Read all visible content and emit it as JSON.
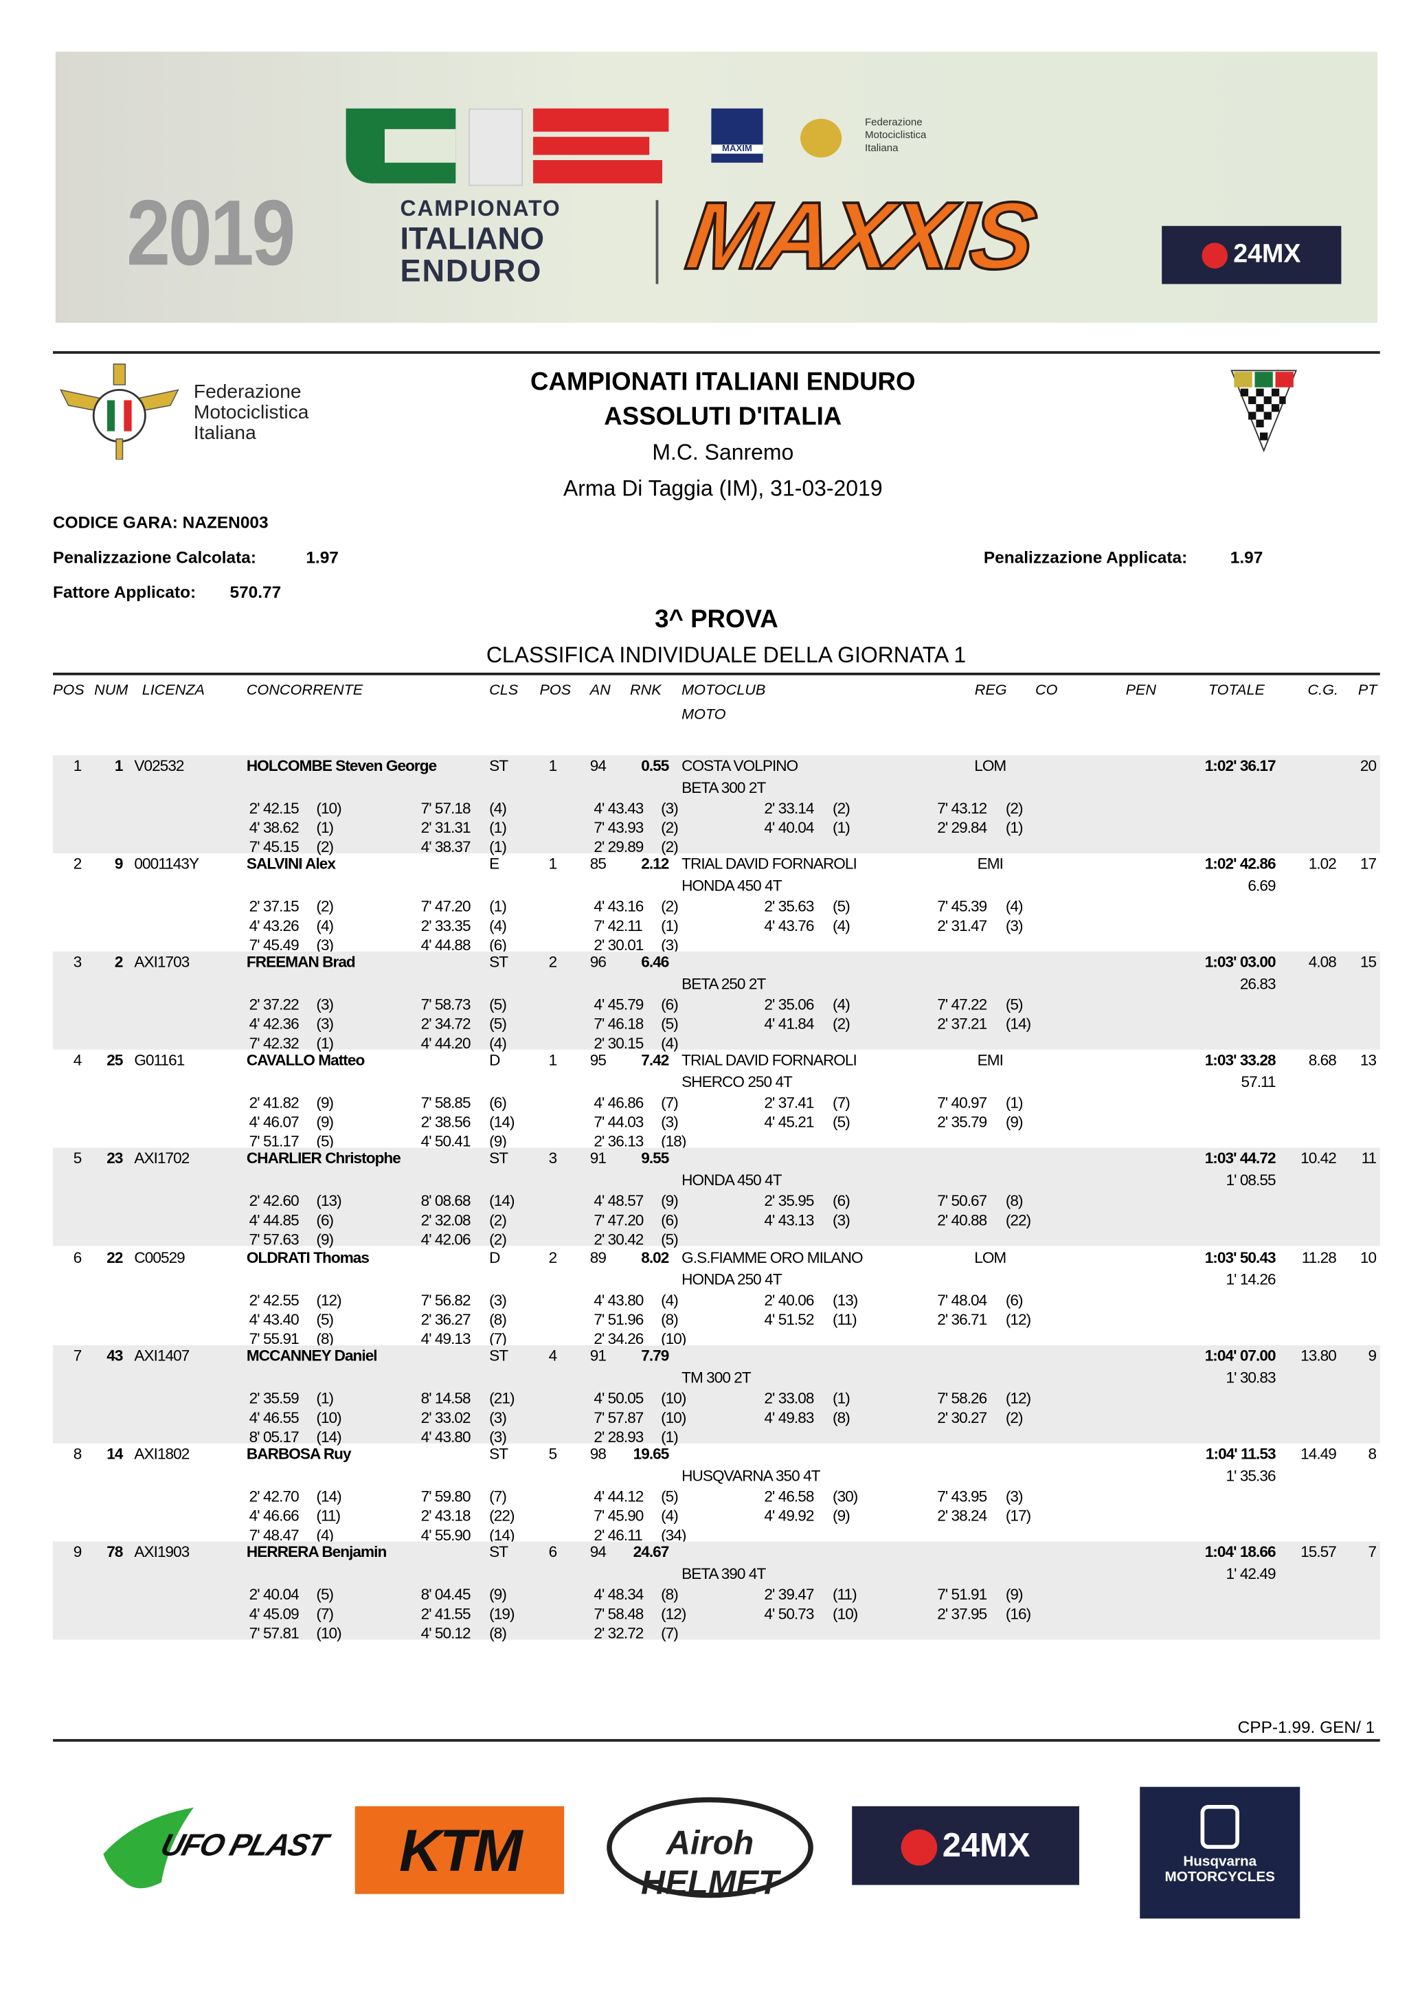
{
  "banner": {
    "year": "2019",
    "cie_logo_text": "CIE",
    "championship": [
      "CAMPIONATO",
      "ITALIANO",
      "ENDURO"
    ],
    "sponsor_main": "MAXXIS",
    "maxim_logo_text": "MAXIM",
    "fmi_small_text": [
      "Federazione",
      "Motociclistica",
      "Italiana"
    ],
    "sponsor_24mx": "24MX",
    "colors": {
      "green": "#1a7a3c",
      "red": "#e0282a",
      "orange": "#ee6f1c",
      "navy": "#1f2340"
    }
  },
  "header": {
    "fmi_logo_text": [
      "Federazione",
      "Motociclistica",
      "Italiana"
    ],
    "title1": "CAMPIONATI ITALIANI ENDURO",
    "title2": "ASSOLUTI D'ITALIA",
    "club": "M.C. Sanremo",
    "place_date": "Arma Di Taggia (IM), 31-03-2019",
    "fie_logo_text": "FIE"
  },
  "info": {
    "codice_gara": "CODICE GARA: NAZEN003",
    "pen_calc_label": "Penalizzazione Calcolata:",
    "pen_calc_value": "1.97",
    "pen_appl_label": "Penalizzazione Applicata:",
    "pen_appl_value": "1.97",
    "fattore_label": "Fattore Applicato:",
    "fattore_value": "570.77"
  },
  "section": {
    "title": "3^ PROVA",
    "subtitle": "CLASSIFICA INDIVIDUALE DELLA GIORNATA 1"
  },
  "columns": {
    "pos": "POS",
    "num": "NUM",
    "licenza": "LICENZA",
    "concorrente": "CONCORRENTE",
    "cls": "CLS",
    "cls_pos": "POS",
    "an": "AN",
    "rnk": "RNK",
    "motoclub": "MOTOCLUB",
    "moto": "MOTO",
    "reg": "REG",
    "co": "CO",
    "pen": "PEN",
    "totale": "TOTALE",
    "cg": "C.G.",
    "pt": "PT"
  },
  "rows": [
    {
      "pos": "1",
      "num": "1",
      "licenza": "V02532",
      "name": "HOLCOMBE Steven George",
      "cls": "ST",
      "cls_pos": "1",
      "an": "94",
      "rnk": "0.55",
      "motoclub": "COSTA VOLPINO",
      "moto": "BETA 300 2T",
      "reg": "LOM",
      "totale": "1:02' 36.17",
      "gap": "",
      "cg": "",
      "pt": "20",
      "times": [
        [
          [
            "2' 42.15",
            "(10)"
          ],
          [
            "7' 57.18",
            "(4)"
          ],
          [
            "4' 43.43",
            "(3)"
          ],
          [
            "2' 33.14",
            "(2)"
          ],
          [
            "7' 43.12",
            "(2)"
          ]
        ],
        [
          [
            "4' 38.62",
            "(1)"
          ],
          [
            "2' 31.31",
            "(1)"
          ],
          [
            "7' 43.93",
            "(2)"
          ],
          [
            "4' 40.04",
            "(1)"
          ],
          [
            "2' 29.84",
            "(1)"
          ]
        ],
        [
          [
            "7' 45.15",
            "(2)"
          ],
          [
            "4' 38.37",
            "(1)"
          ],
          [
            "2' 29.89",
            "(2)"
          ]
        ]
      ]
    },
    {
      "pos": "2",
      "num": "9",
      "licenza": "0001143Y",
      "name": "SALVINI Alex",
      "cls": "E",
      "cls_pos": "1",
      "an": "85",
      "rnk": "2.12",
      "motoclub": "TRIAL DAVID FORNAROLI",
      "moto": "HONDA 450 4T",
      "reg": "EMI",
      "totale": "1:02' 42.86",
      "gap": "6.69",
      "cg": "1.02",
      "pt": "17",
      "times": [
        [
          [
            "2' 37.15",
            "(2)"
          ],
          [
            "7' 47.20",
            "(1)"
          ],
          [
            "4' 43.16",
            "(2)"
          ],
          [
            "2' 35.63",
            "(5)"
          ],
          [
            "7' 45.39",
            "(4)"
          ]
        ],
        [
          [
            "4' 43.26",
            "(4)"
          ],
          [
            "2' 33.35",
            "(4)"
          ],
          [
            "7' 42.11",
            "(1)"
          ],
          [
            "4' 43.76",
            "(4)"
          ],
          [
            "2' 31.47",
            "(3)"
          ]
        ],
        [
          [
            "7' 45.49",
            "(3)"
          ],
          [
            "4' 44.88",
            "(6)"
          ],
          [
            "2' 30.01",
            "(3)"
          ]
        ]
      ]
    },
    {
      "pos": "3",
      "num": "2",
      "licenza": "AXI1703",
      "name": "FREEMAN Brad",
      "cls": "ST",
      "cls_pos": "2",
      "an": "96",
      "rnk": "6.46",
      "motoclub": "",
      "moto": "BETA 250 2T",
      "reg": "",
      "totale": "1:03' 03.00",
      "gap": "26.83",
      "cg": "4.08",
      "pt": "15",
      "times": [
        [
          [
            "2' 37.22",
            "(3)"
          ],
          [
            "7' 58.73",
            "(5)"
          ],
          [
            "4' 45.79",
            "(6)"
          ],
          [
            "2' 35.06",
            "(4)"
          ],
          [
            "7' 47.22",
            "(5)"
          ]
        ],
        [
          [
            "4' 42.36",
            "(3)"
          ],
          [
            "2' 34.72",
            "(5)"
          ],
          [
            "7' 46.18",
            "(5)"
          ],
          [
            "4' 41.84",
            "(2)"
          ],
          [
            "2' 37.21",
            "(14)"
          ]
        ],
        [
          [
            "7' 42.32",
            "(1)"
          ],
          [
            "4' 44.20",
            "(4)"
          ],
          [
            "2' 30.15",
            "(4)"
          ]
        ]
      ]
    },
    {
      "pos": "4",
      "num": "25",
      "licenza": "G01161",
      "name": "CAVALLO Matteo",
      "cls": "D",
      "cls_pos": "1",
      "an": "95",
      "rnk": "7.42",
      "motoclub": "TRIAL DAVID FORNAROLI",
      "moto": "SHERCO 250 4T",
      "reg": "EMI",
      "totale": "1:03' 33.28",
      "gap": "57.11",
      "cg": "8.68",
      "pt": "13",
      "times": [
        [
          [
            "2' 41.82",
            "(9)"
          ],
          [
            "7' 58.85",
            "(6)"
          ],
          [
            "4' 46.86",
            "(7)"
          ],
          [
            "2' 37.41",
            "(7)"
          ],
          [
            "7' 40.97",
            "(1)"
          ]
        ],
        [
          [
            "4' 46.07",
            "(9)"
          ],
          [
            "2' 38.56",
            "(14)"
          ],
          [
            "7' 44.03",
            "(3)"
          ],
          [
            "4' 45.21",
            "(5)"
          ],
          [
            "2' 35.79",
            "(9)"
          ]
        ],
        [
          [
            "7' 51.17",
            "(5)"
          ],
          [
            "4' 50.41",
            "(9)"
          ],
          [
            "2' 36.13",
            "(18)"
          ]
        ]
      ]
    },
    {
      "pos": "5",
      "num": "23",
      "licenza": "AXI1702",
      "name": "CHARLIER Christophe",
      "cls": "ST",
      "cls_pos": "3",
      "an": "91",
      "rnk": "9.55",
      "motoclub": "",
      "moto": "HONDA 450 4T",
      "reg": "",
      "totale": "1:03' 44.72",
      "gap": "1' 08.55",
      "cg": "10.42",
      "pt": "11",
      "times": [
        [
          [
            "2' 42.60",
            "(13)"
          ],
          [
            "8' 08.68",
            "(14)"
          ],
          [
            "4' 48.57",
            "(9)"
          ],
          [
            "2' 35.95",
            "(6)"
          ],
          [
            "7' 50.67",
            "(8)"
          ]
        ],
        [
          [
            "4' 44.85",
            "(6)"
          ],
          [
            "2' 32.08",
            "(2)"
          ],
          [
            "7' 47.20",
            "(6)"
          ],
          [
            "4' 43.13",
            "(3)"
          ],
          [
            "2' 40.88",
            "(22)"
          ]
        ],
        [
          [
            "7' 57.63",
            "(9)"
          ],
          [
            "4' 42.06",
            "(2)"
          ],
          [
            "2' 30.42",
            "(5)"
          ]
        ]
      ]
    },
    {
      "pos": "6",
      "num": "22",
      "licenza": "C00529",
      "name": "OLDRATI Thomas",
      "cls": "D",
      "cls_pos": "2",
      "an": "89",
      "rnk": "8.02",
      "motoclub": "G.S.FIAMME ORO MILANO",
      "moto": "HONDA 250 4T",
      "reg": "LOM",
      "totale": "1:03' 50.43",
      "gap": "1' 14.26",
      "cg": "11.28",
      "pt": "10",
      "times": [
        [
          [
            "2' 42.55",
            "(12)"
          ],
          [
            "7' 56.82",
            "(3)"
          ],
          [
            "4' 43.80",
            "(4)"
          ],
          [
            "2' 40.06",
            "(13)"
          ],
          [
            "7' 48.04",
            "(6)"
          ]
        ],
        [
          [
            "4' 43.40",
            "(5)"
          ],
          [
            "2' 36.27",
            "(8)"
          ],
          [
            "7' 51.96",
            "(8)"
          ],
          [
            "4' 51.52",
            "(11)"
          ],
          [
            "2' 36.71",
            "(12)"
          ]
        ],
        [
          [
            "7' 55.91",
            "(8)"
          ],
          [
            "4' 49.13",
            "(7)"
          ],
          [
            "2' 34.26",
            "(10)"
          ]
        ]
      ]
    },
    {
      "pos": "7",
      "num": "43",
      "licenza": "AXI1407",
      "name": "MCCANNEY Daniel",
      "cls": "ST",
      "cls_pos": "4",
      "an": "91",
      "rnk": "7.79",
      "motoclub": "",
      "moto": "TM 300 2T",
      "reg": "",
      "totale": "1:04' 07.00",
      "gap": "1' 30.83",
      "cg": "13.80",
      "pt": "9",
      "times": [
        [
          [
            "2' 35.59",
            "(1)"
          ],
          [
            "8' 14.58",
            "(21)"
          ],
          [
            "4' 50.05",
            "(10)"
          ],
          [
            "2' 33.08",
            "(1)"
          ],
          [
            "7' 58.26",
            "(12)"
          ]
        ],
        [
          [
            "4' 46.55",
            "(10)"
          ],
          [
            "2' 33.02",
            "(3)"
          ],
          [
            "7' 57.87",
            "(10)"
          ],
          [
            "4' 49.83",
            "(8)"
          ],
          [
            "2' 30.27",
            "(2)"
          ]
        ],
        [
          [
            "8' 05.17",
            "(14)"
          ],
          [
            "4' 43.80",
            "(3)"
          ],
          [
            "2' 28.93",
            "(1)"
          ]
        ]
      ]
    },
    {
      "pos": "8",
      "num": "14",
      "licenza": "AXI1802",
      "name": "BARBOSA Ruy",
      "cls": "ST",
      "cls_pos": "5",
      "an": "98",
      "rnk": "19.65",
      "motoclub": "",
      "moto": "HUSQVARNA 350 4T",
      "reg": "",
      "totale": "1:04' 11.53",
      "gap": "1' 35.36",
      "cg": "14.49",
      "pt": "8",
      "times": [
        [
          [
            "2' 42.70",
            "(14)"
          ],
          [
            "7' 59.80",
            "(7)"
          ],
          [
            "4' 44.12",
            "(5)"
          ],
          [
            "2' 46.58",
            "(30)"
          ],
          [
            "7' 43.95",
            "(3)"
          ]
        ],
        [
          [
            "4' 46.66",
            "(11)"
          ],
          [
            "2' 43.18",
            "(22)"
          ],
          [
            "7' 45.90",
            "(4)"
          ],
          [
            "4' 49.92",
            "(9)"
          ],
          [
            "2' 38.24",
            "(17)"
          ]
        ],
        [
          [
            "7' 48.47",
            "(4)"
          ],
          [
            "4' 55.90",
            "(14)"
          ],
          [
            "2' 46.11",
            "(34)"
          ]
        ]
      ]
    },
    {
      "pos": "9",
      "num": "78",
      "licenza": "AXI1903",
      "name": "HERRERA Benjamin",
      "cls": "ST",
      "cls_pos": "6",
      "an": "94",
      "rnk": "24.67",
      "motoclub": "",
      "moto": "BETA 390 4T",
      "reg": "",
      "totale": "1:04' 18.66",
      "gap": "1' 42.49",
      "cg": "15.57",
      "pt": "7",
      "times": [
        [
          [
            "2' 40.04",
            "(5)"
          ],
          [
            "8' 04.45",
            "(9)"
          ],
          [
            "4' 48.34",
            "(8)"
          ],
          [
            "2' 39.47",
            "(11)"
          ],
          [
            "7' 51.91",
            "(9)"
          ]
        ],
        [
          [
            "4' 45.09",
            "(7)"
          ],
          [
            "2' 41.55",
            "(19)"
          ],
          [
            "7' 58.48",
            "(12)"
          ],
          [
            "4' 50.73",
            "(10)"
          ],
          [
            "2' 37.95",
            "(16)"
          ]
        ],
        [
          [
            "7' 57.81",
            "(10)"
          ],
          [
            "4' 50.12",
            "(8)"
          ],
          [
            "2' 32.72",
            "(7)"
          ]
        ]
      ]
    }
  ],
  "footer": {
    "code": "CPP-1.99. GEN/  1",
    "sponsors": [
      "UFO PLAST",
      "KTM",
      "Airoh HELMET",
      "24MX",
      "Husqvarna MOTORCYCLES"
    ]
  }
}
